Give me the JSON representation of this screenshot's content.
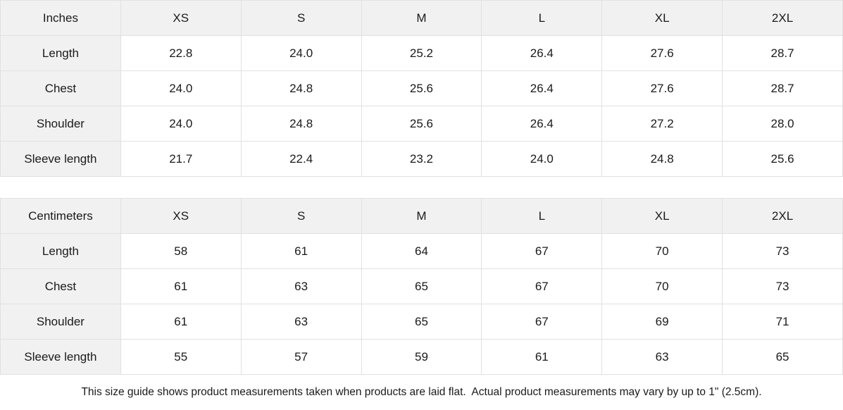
{
  "page": {
    "background": "#ffffff",
    "text_color": "#1a1a1a",
    "header_cell_bg": "#f1f1f1",
    "border_color": "#e1e1e1"
  },
  "size_chart": {
    "sizes": [
      "XS",
      "S",
      "M",
      "L",
      "XL",
      "2XL"
    ],
    "tables": [
      {
        "unit_label": "Inches",
        "rows": [
          {
            "label": "Length",
            "values": [
              "22.8",
              "24.0",
              "25.2",
              "26.4",
              "27.6",
              "28.7"
            ]
          },
          {
            "label": "Chest",
            "values": [
              "24.0",
              "24.8",
              "25.6",
              "26.4",
              "27.6",
              "28.7"
            ]
          },
          {
            "label": "Shoulder",
            "values": [
              "24.0",
              "24.8",
              "25.6",
              "26.4",
              "27.2",
              "28.0"
            ]
          },
          {
            "label": "Sleeve length",
            "values": [
              "21.7",
              "22.4",
              "23.2",
              "24.0",
              "24.8",
              "25.6"
            ]
          }
        ]
      },
      {
        "unit_label": "Centimeters",
        "rows": [
          {
            "label": "Length",
            "values": [
              "58",
              "61",
              "64",
              "67",
              "70",
              "73"
            ]
          },
          {
            "label": "Chest",
            "values": [
              "61",
              "63",
              "65",
              "67",
              "70",
              "73"
            ]
          },
          {
            "label": "Shoulder",
            "values": [
              "61",
              "63",
              "65",
              "67",
              "69",
              "71"
            ]
          },
          {
            "label": "Sleeve length",
            "values": [
              "55",
              "57",
              "59",
              "61",
              "63",
              "65"
            ]
          }
        ]
      }
    ],
    "footnote": "This size guide shows product measurements taken when products are laid flat.  Actual product measurements may vary by up to 1\" (2.5cm)."
  }
}
